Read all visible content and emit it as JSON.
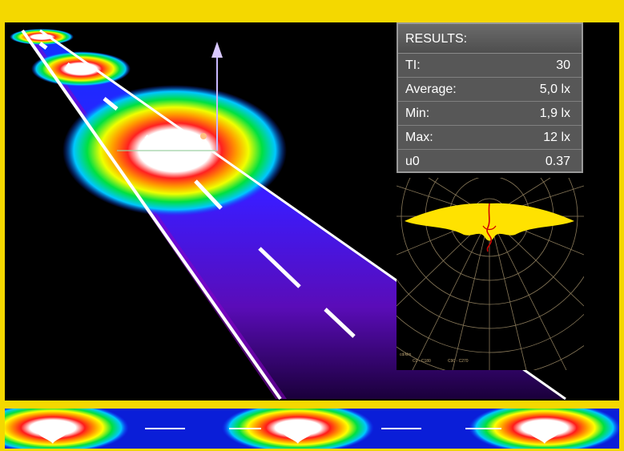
{
  "results": {
    "title": "RESULTS:",
    "rows": [
      {
        "label": "TI:",
        "value": "30"
      },
      {
        "label": "Average:",
        "value": "5,0 lx"
      },
      {
        "label": "Min:",
        "value": "1,9 lx"
      },
      {
        "label": "Max:",
        "value": "12 lx"
      },
      {
        "label": "u0",
        "value": "0.37"
      }
    ]
  },
  "polar_chart": {
    "footer_left": "cd/klm",
    "footer_mid": "C0 - C180",
    "footer_right": "C90 - C270"
  },
  "colors": {
    "frame": "#f4d800",
    "background": "#000000",
    "panel": "#575757",
    "distribution_fill": "#ffe200",
    "distribution_curve": "#d00000",
    "polar_grid": "#8a7a5a"
  }
}
